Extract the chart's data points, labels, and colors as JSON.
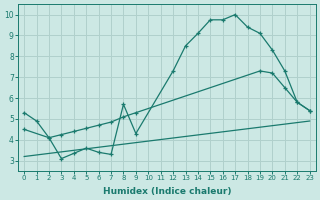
{
  "line1_x": [
    0,
    1,
    2,
    3,
    4,
    5,
    6,
    7,
    8,
    9,
    12,
    13,
    14,
    15,
    16,
    17,
    18,
    19,
    20,
    21,
    22,
    23
  ],
  "line1_y": [
    5.3,
    4.9,
    4.1,
    3.1,
    3.35,
    3.6,
    3.4,
    3.3,
    5.7,
    4.3,
    7.3,
    8.5,
    9.1,
    9.75,
    9.75,
    10.0,
    9.4,
    9.1,
    8.3,
    7.3,
    5.8,
    5.4
  ],
  "line2_x": [
    0,
    2,
    3,
    4,
    5,
    6,
    7,
    8,
    9,
    19,
    20,
    21,
    22,
    23
  ],
  "line2_y": [
    4.5,
    4.1,
    4.25,
    4.4,
    4.55,
    4.7,
    4.85,
    5.1,
    5.3,
    7.3,
    7.2,
    6.5,
    5.8,
    5.4
  ],
  "line3_x": [
    0,
    23
  ],
  "line3_y": [
    3.2,
    4.9
  ],
  "line_color": "#1a7a6e",
  "bg_color": "#cce8e4",
  "grid_color": "#b0d0cc",
  "xlabel": "Humidex (Indice chaleur)",
  "xlim": [
    -0.5,
    23.5
  ],
  "ylim": [
    2.5,
    10.5
  ],
  "yticks": [
    3,
    4,
    5,
    6,
    7,
    8,
    9,
    10
  ],
  "xticks": [
    0,
    1,
    2,
    3,
    4,
    5,
    6,
    7,
    8,
    9,
    10,
    11,
    12,
    13,
    14,
    15,
    16,
    17,
    18,
    19,
    20,
    21,
    22,
    23
  ]
}
